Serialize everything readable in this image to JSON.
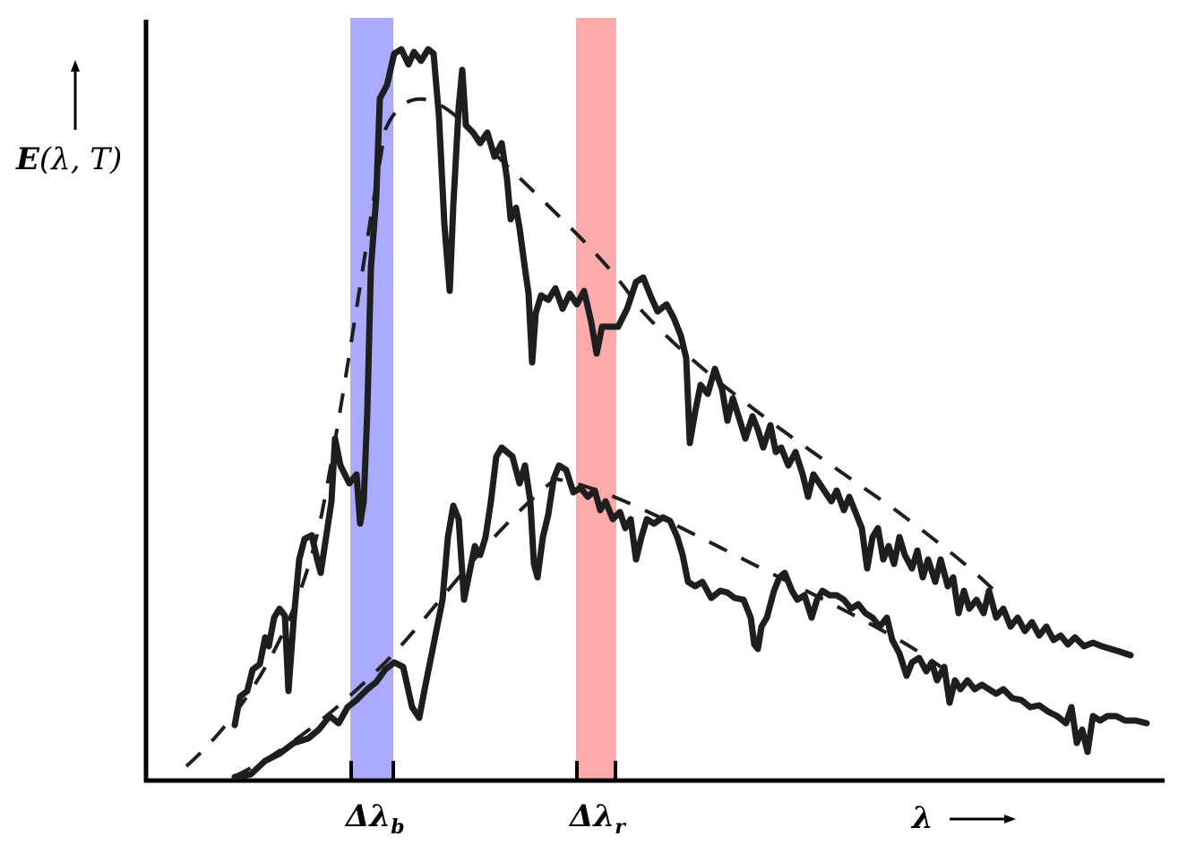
{
  "labels": {
    "y_axis": {
      "func": "E",
      "args": "(λ, T)"
    },
    "band_blue": {
      "symbol": "Δλ",
      "sub": "b"
    },
    "band_red": {
      "symbol": "Δλ",
      "sub": "r"
    },
    "x_axis": {
      "symbol": "λ"
    }
  },
  "colors": {
    "band_blue": "#aaaaff",
    "band_red": "#ffaaaa",
    "curve": "#1e1e1e",
    "axis": "#000000"
  },
  "chart_data": {
    "type": "line",
    "series": [
      {
        "style": "solid"
      },
      {
        "style": "dashed"
      },
      {
        "style": "solid"
      },
      {
        "style": "dashed"
      }
    ]
  }
}
